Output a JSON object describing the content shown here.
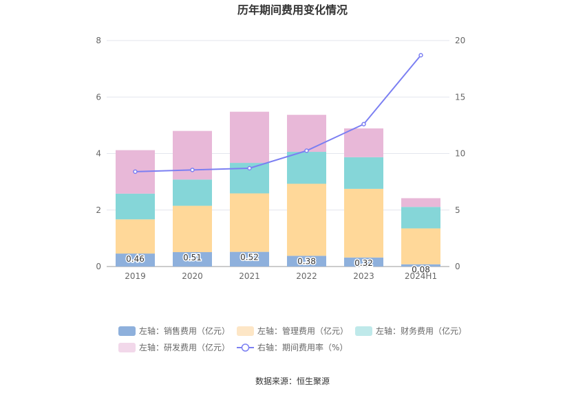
{
  "chart_data": {
    "type": "bar",
    "title": "历年期间费用变化情况",
    "categories": [
      "2019",
      "2020",
      "2021",
      "2022",
      "2023",
      "2024H1"
    ],
    "stacked": true,
    "series": [
      {
        "name": "左轴：销售费用（亿元）",
        "axis": "left",
        "color": "#8eb0dc",
        "values": [
          0.46,
          0.51,
          0.52,
          0.38,
          0.32,
          0.08
        ],
        "labels": [
          "0.46",
          "0.51",
          "0.52",
          "0.38",
          "0.32",
          "0.08"
        ]
      },
      {
        "name": "左轴：管理费用（亿元）",
        "axis": "left",
        "color": "#ffd899",
        "values": [
          1.21,
          1.64,
          2.07,
          2.55,
          2.43,
          1.27
        ]
      },
      {
        "name": "左轴：财务费用（亿元）",
        "axis": "left",
        "color": "#85d6d8",
        "values": [
          0.91,
          0.93,
          1.08,
          1.13,
          1.12,
          0.76
        ]
      },
      {
        "name": "左轴：研发费用（亿元）",
        "axis": "left",
        "color": "#e8b8d8",
        "values": [
          1.54,
          1.72,
          1.81,
          1.31,
          1.02,
          0.31
        ]
      },
      {
        "name": "右轴：期间费用率（%）",
        "axis": "right",
        "type": "line",
        "color": "#7b7ff2",
        "values": [
          8.4,
          8.55,
          8.7,
          10.25,
          12.6,
          18.7
        ]
      }
    ],
    "left_axis": {
      "min": 0,
      "max": 8,
      "ticks": [
        "0",
        "2",
        "4",
        "6",
        "8"
      ]
    },
    "right_axis": {
      "min": 0,
      "max": 20,
      "ticks": [
        "0",
        "5",
        "10",
        "15",
        "20"
      ]
    },
    "grid": true,
    "legend_position": "bottom"
  },
  "legend_colors": [
    "#8eb0dc",
    "#fde6c6",
    "#bfe9ea",
    "#f2d8ea",
    "#7b7ff2"
  ],
  "source": "数据来源：恒生聚源"
}
